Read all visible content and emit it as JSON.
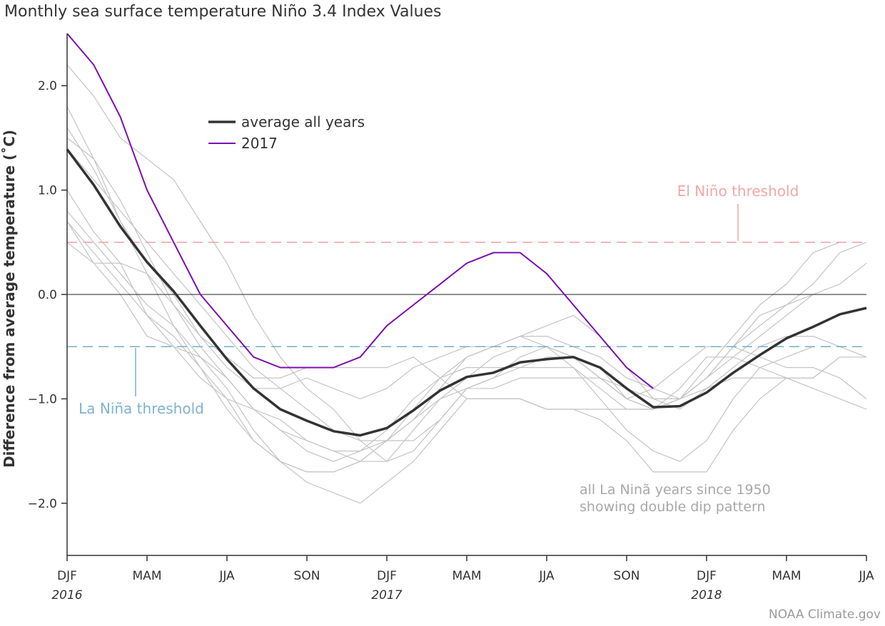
{
  "title": "Monthly sea surface temperature Niño 3.4 Index Values",
  "credit": "NOAA Climate.gov",
  "colors": {
    "average": "#333333",
    "year2017": "#7b0fb0",
    "background_years": "#c4c4c4",
    "el_nino": "#f0a8a8",
    "la_nina": "#7fb2d2",
    "note": "#a8a8a8"
  },
  "chart_data": {
    "type": "line",
    "title": "Monthly sea surface temperature Niño 3.4 Index Values",
    "ylabel": "Difference from average temperature (˚C)",
    "xlabel": "",
    "ylim": [
      -2.5,
      2.5
    ],
    "xlim": [
      0,
      30
    ],
    "grid": false,
    "legend_placement": "top-left",
    "x_tick_labels": [
      {
        "pos": 0,
        "label": "DJF"
      },
      {
        "pos": 3,
        "label": "MAM"
      },
      {
        "pos": 6,
        "label": "JJA"
      },
      {
        "pos": 9,
        "label": "SON"
      },
      {
        "pos": 12,
        "label": "DJF"
      },
      {
        "pos": 15,
        "label": "MAM"
      },
      {
        "pos": 18,
        "label": "JJA"
      },
      {
        "pos": 21,
        "label": "SON"
      },
      {
        "pos": 24,
        "label": "DJF"
      },
      {
        "pos": 27,
        "label": "MAM"
      },
      {
        "pos": 30,
        "label": "JJA"
      }
    ],
    "year_labels": [
      {
        "pos": 0,
        "label": "2016"
      },
      {
        "pos": 12,
        "label": "2017"
      },
      {
        "pos": 24,
        "label": "2018"
      }
    ],
    "y_ticks": [
      {
        "value": 2.0,
        "label": "2.0"
      },
      {
        "value": 1.0,
        "label": "1.0"
      },
      {
        "value": 0.0,
        "label": "0.0"
      },
      {
        "value": -1.0,
        "label": "−1.0"
      },
      {
        "value": -2.0,
        "label": "−2.0"
      }
    ],
    "thresholds": [
      {
        "name": "El Niño threshold",
        "value": 0.5
      },
      {
        "name": "La Niña threshold",
        "value": -0.5
      }
    ],
    "zero_line": 0.0,
    "series": [
      {
        "name": "average all years",
        "role": "average",
        "values": [
          1.39,
          1.05,
          0.65,
          0.31,
          0.03,
          -0.3,
          -0.62,
          -0.9,
          -1.1,
          -1.21,
          -1.31,
          -1.35,
          -1.28,
          -1.11,
          -0.92,
          -0.79,
          -0.75,
          -0.65,
          -0.62,
          -0.6,
          -0.7,
          -0.9,
          -1.08,
          -1.07,
          -0.94,
          -0.75,
          -0.58,
          -0.42,
          -0.31,
          -0.19,
          -0.13
        ]
      },
      {
        "name": "2017",
        "role": "highlight",
        "values": [
          2.5,
          2.2,
          1.7,
          1.0,
          0.5,
          0.0,
          -0.3,
          -0.6,
          -0.7,
          -0.7,
          -0.7,
          -0.6,
          -0.3,
          -0.1,
          0.1,
          0.3,
          0.4,
          0.4,
          0.2,
          -0.1,
          -0.4,
          -0.7,
          -0.9
        ]
      }
    ],
    "background_series_note": "all La Ninã years since 1950\nshowing double dip pattern",
    "background_series": [
      {
        "values": [
          2.2,
          1.9,
          1.5,
          1.3,
          1.1,
          0.7,
          0.3,
          -0.2,
          -0.6,
          -0.9,
          -1.1,
          -1.4,
          -1.6,
          -1.5,
          -1.2,
          -0.9,
          -0.8,
          -0.6,
          -0.5,
          -0.6,
          -0.7,
          -1.0,
          -1.1,
          -1.0,
          -0.7,
          -0.4,
          -0.1,
          0.1,
          0.4,
          0.5
        ]
      },
      {
        "values": [
          1.8,
          1.3,
          0.7,
          0.2,
          -0.3,
          -0.7,
          -1.0,
          -1.4,
          -1.6,
          -1.7,
          -1.7,
          -1.6,
          -1.4,
          -1.2,
          -0.9,
          -0.6,
          -0.5,
          -0.4,
          -0.5,
          -0.7,
          -1.0,
          -1.3,
          -1.5,
          -1.6,
          -1.4,
          -1.0,
          -0.7,
          -0.6,
          -0.5
        ]
      },
      {
        "values": [
          1.5,
          1.3,
          0.9,
          0.4,
          -0.1,
          -0.5,
          -0.8,
          -1.1,
          -1.3,
          -1.5,
          -1.6,
          -1.5,
          -1.3,
          -1.0,
          -0.8,
          -0.6,
          -0.5,
          -0.4,
          -0.4,
          -0.5,
          -0.6,
          -0.8,
          -0.9,
          -1.0,
          -0.8,
          -0.6,
          -0.4,
          -0.2,
          0.0
        ]
      },
      {
        "values": [
          0.8,
          0.5,
          0.2,
          -0.1,
          -0.3,
          -0.6,
          -0.9,
          -1.3,
          -1.6,
          -1.8,
          -1.9,
          -2.0,
          -1.8,
          -1.6,
          -1.3,
          -1.0,
          -1.0,
          -1.0,
          -1.1,
          -1.1,
          -1.2,
          -1.4,
          -1.7,
          -1.7,
          -1.7,
          -1.3,
          -1.0,
          -0.8,
          -0.8,
          -0.6
        ]
      },
      {
        "values": [
          0.7,
          0.3,
          0.0,
          -0.4,
          -0.5,
          -0.6,
          -0.8,
          -1.1,
          -1.3,
          -1.4,
          -1.5,
          -1.6,
          -1.6,
          -1.3,
          -1.0,
          -0.8,
          -0.6,
          -0.5,
          -0.5,
          -0.6,
          -0.8,
          -1.0,
          -1.1,
          -1.0,
          -0.8,
          -0.5,
          -0.3,
          -0.1,
          0.1,
          0.4,
          0.5
        ]
      },
      {
        "values": [
          0.5,
          0.3,
          0.3,
          0.2,
          -0.1,
          -0.4,
          -0.6,
          -0.8,
          -0.8,
          -0.7,
          -0.7,
          -0.7,
          -0.7,
          -0.6,
          -0.8,
          -1.0,
          -1.0,
          -1.0,
          -1.1,
          -1.1,
          -1.1,
          -1.1,
          -1.1,
          -1.0,
          -0.9,
          -0.8,
          -0.8,
          -0.8,
          -0.8,
          -0.6,
          -0.6
        ]
      },
      {
        "values": [
          1.6,
          1.2,
          0.7,
          0.3,
          0.0,
          -0.4,
          -0.7,
          -0.9,
          -0.9,
          -0.8,
          -0.9,
          -1.0,
          -0.9,
          -0.7,
          -0.6,
          -0.5,
          -0.5,
          -0.4,
          -0.3,
          -0.2,
          -0.4,
          -0.7,
          -1.0,
          -1.1,
          -0.9,
          -0.7,
          -0.5,
          -0.4,
          -0.4,
          -0.5,
          -0.6
        ]
      },
      {
        "values": [
          0.7,
          0.4,
          0.1,
          -0.2,
          -0.5,
          -0.8,
          -1.0,
          -1.1,
          -1.2,
          -1.4,
          -1.5,
          -1.5,
          -1.4,
          -1.4,
          -1.2,
          -0.9,
          -0.8,
          -0.7,
          -0.6,
          -0.6,
          -0.8,
          -1.0,
          -0.9,
          -0.7,
          -0.5,
          -0.5,
          -0.6,
          -0.7,
          -0.7,
          -0.8,
          -1.0
        ]
      },
      {
        "values": [
          1.0,
          0.6,
          0.3,
          -0.2,
          -0.4,
          -0.7,
          -1.1,
          -1.4,
          -1.6,
          -1.7,
          -1.7,
          -1.6,
          -1.4,
          -1.1,
          -0.8,
          -0.7,
          -0.7,
          -0.7,
          -0.7,
          -0.7,
          -0.9,
          -1.1,
          -1.1,
          -0.9,
          -0.6,
          -0.6,
          -0.7,
          -0.8,
          -0.9,
          -1.0,
          -1.1
        ]
      },
      {
        "values": [
          1.4,
          1.1,
          0.8,
          0.5,
          0.2,
          -0.1,
          -0.4,
          -0.7,
          -0.9,
          -1.1,
          -1.3,
          -1.4,
          -1.4,
          -1.2,
          -1.0,
          -0.9,
          -0.9,
          -0.8,
          -0.8,
          -0.8,
          -0.8,
          -0.9,
          -1.0,
          -1.0,
          -0.8,
          -0.5,
          -0.2,
          -0.1,
          0.0,
          0.1,
          0.3
        ]
      }
    ]
  }
}
